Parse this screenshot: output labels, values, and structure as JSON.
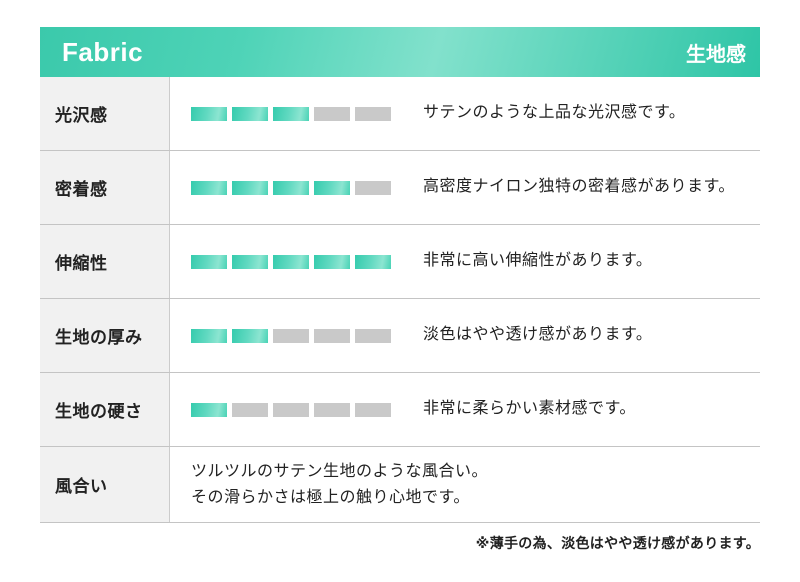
{
  "header": {
    "title_en": "Fabric",
    "title_ja": "生地感"
  },
  "colors": {
    "accent": "#2ec5a6",
    "accent_light": "#8ce5d1",
    "bar_empty": "#c9c9c9",
    "label_bg": "#f1f1f1",
    "border": "#c4c4c4"
  },
  "rows": [
    {
      "label": "光沢感",
      "rating": 3,
      "max": 5,
      "description": "サテンのような上品な光沢感です。"
    },
    {
      "label": "密着感",
      "rating": 4,
      "max": 5,
      "description": "高密度ナイロン独特の密着感があります。"
    },
    {
      "label": "伸縮性",
      "rating": 5,
      "max": 5,
      "description": "非常に高い伸縮性があります。"
    },
    {
      "label": "生地の厚み",
      "rating": 2,
      "max": 5,
      "description": "淡色はやや透け感があります。"
    },
    {
      "label": "生地の硬さ",
      "rating": 1,
      "max": 5,
      "description": "非常に柔らかい素材感です。"
    },
    {
      "label": "風合い",
      "description_lines": [
        "ツルツルのサテン生地のような風合い。",
        "その滑らかさは極上の触り心地です。"
      ]
    }
  ],
  "footnote": "※薄手の為、淡色はやや透け感があります。"
}
